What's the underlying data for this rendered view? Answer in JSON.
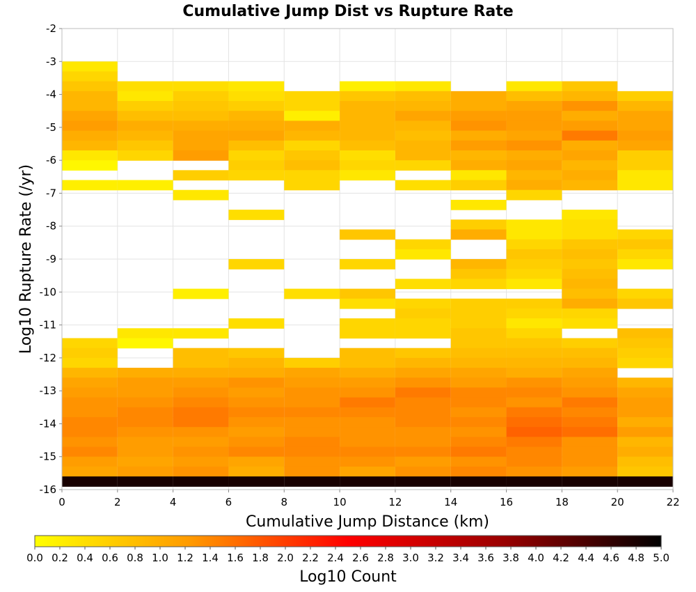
{
  "chart_data": {
    "type": "heatmap",
    "title": "Cumulative Jump Dist vs Rupture Rate",
    "xlabel": "Cumulative Jump Distance (km)",
    "ylabel": "Log10 Rupture Rate (/yr)",
    "colorbar_label": "Log10 Count",
    "xlim": [
      0,
      22
    ],
    "ylim": [
      -16,
      -2
    ],
    "x_ticks": [
      "0",
      "2",
      "4",
      "6",
      "8",
      "10",
      "12",
      "14",
      "16",
      "18",
      "20",
      "22"
    ],
    "y_ticks": [
      "-2",
      "-3",
      "-4",
      "-5",
      "-6",
      "-7",
      "-8",
      "-9",
      "-10",
      "-11",
      "-12",
      "-13",
      "-14",
      "-15",
      "-16"
    ],
    "color_range": [
      0.0,
      5.0
    ],
    "color_ticks": [
      "0.0",
      "0.2",
      "0.4",
      "0.6",
      "0.8",
      "1.0",
      "1.2",
      "1.4",
      "1.6",
      "1.8",
      "2.0",
      "2.2",
      "2.4",
      "2.6",
      "2.8",
      "3.0",
      "3.2",
      "3.4",
      "3.6",
      "3.8",
      "4.0",
      "4.2",
      "4.4",
      "4.6",
      "4.8",
      "5.0"
    ],
    "colormap": [
      "#ffff00",
      "#ff9900",
      "#ff0000",
      "#990000",
      "#000000"
    ],
    "grid": true,
    "x_bin_width": 2,
    "y_bin_height": 0.3,
    "cells": [
      [
        0,
        -3.3,
        0.3
      ],
      [
        0,
        -3.6,
        0.5
      ],
      [
        0,
        -3.9,
        0.7
      ],
      [
        0,
        -4.2,
        0.9
      ],
      [
        0,
        -4.5,
        0.9
      ],
      [
        0,
        -4.8,
        1.1
      ],
      [
        0,
        -5.1,
        1.2
      ],
      [
        0,
        -5.4,
        1.0
      ],
      [
        0,
        -5.7,
        0.9
      ],
      [
        0,
        -6.0,
        0.3
      ],
      [
        0,
        -6.3,
        0.1
      ],
      [
        0,
        -6.9,
        0.2
      ],
      [
        0,
        -11.7,
        0.5
      ],
      [
        0,
        -12.0,
        0.6
      ],
      [
        0,
        -12.3,
        0.5
      ],
      [
        0,
        -12.6,
        0.9
      ],
      [
        0,
        -12.9,
        1.1
      ],
      [
        0,
        -13.2,
        1.2
      ],
      [
        0,
        -13.5,
        1.3
      ],
      [
        0,
        -13.8,
        1.3
      ],
      [
        0,
        -14.1,
        1.4
      ],
      [
        0,
        -14.4,
        1.4
      ],
      [
        0,
        -14.7,
        1.3
      ],
      [
        0,
        -15.0,
        1.4
      ],
      [
        0,
        -15.3,
        1.2
      ],
      [
        0,
        -15.6,
        1.1
      ],
      [
        0,
        -15.9,
        4.8
      ],
      [
        2,
        -3.9,
        0.4
      ],
      [
        2,
        -4.2,
        0.3
      ],
      [
        2,
        -4.5,
        0.6
      ],
      [
        2,
        -4.8,
        0.8
      ],
      [
        2,
        -5.1,
        1.0
      ],
      [
        2,
        -5.4,
        0.9
      ],
      [
        2,
        -5.7,
        0.7
      ],
      [
        2,
        -6.0,
        0.5
      ],
      [
        2,
        -6.9,
        0.2
      ],
      [
        2,
        -11.4,
        0.3
      ],
      [
        2,
        -11.7,
        0.1
      ],
      [
        2,
        -12.6,
        1.0
      ],
      [
        2,
        -12.9,
        1.2
      ],
      [
        2,
        -13.2,
        1.2
      ],
      [
        2,
        -13.5,
        1.3
      ],
      [
        2,
        -13.8,
        1.4
      ],
      [
        2,
        -14.1,
        1.4
      ],
      [
        2,
        -14.4,
        1.3
      ],
      [
        2,
        -14.7,
        1.2
      ],
      [
        2,
        -15.0,
        1.2
      ],
      [
        2,
        -15.3,
        1.1
      ],
      [
        2,
        -15.6,
        1.2
      ],
      [
        2,
        -15.9,
        4.8
      ],
      [
        4,
        -3.9,
        0.4
      ],
      [
        4,
        -4.2,
        0.6
      ],
      [
        4,
        -4.5,
        0.7
      ],
      [
        4,
        -4.8,
        0.8
      ],
      [
        4,
        -5.1,
        1.0
      ],
      [
        4,
        -5.4,
        1.1
      ],
      [
        4,
        -5.7,
        1.1
      ],
      [
        4,
        -6.0,
        1.2
      ],
      [
        4,
        -6.6,
        0.6
      ],
      [
        4,
        -7.2,
        0.3
      ],
      [
        4,
        -10.2,
        0.2
      ],
      [
        4,
        -11.4,
        0.3
      ],
      [
        4,
        -12.0,
        0.8
      ],
      [
        4,
        -12.3,
        0.8
      ],
      [
        4,
        -12.6,
        1.0
      ],
      [
        4,
        -12.9,
        1.2
      ],
      [
        4,
        -13.2,
        1.3
      ],
      [
        4,
        -13.5,
        1.4
      ],
      [
        4,
        -13.8,
        1.5
      ],
      [
        4,
        -14.1,
        1.5
      ],
      [
        4,
        -14.4,
        1.3
      ],
      [
        4,
        -14.7,
        1.2
      ],
      [
        4,
        -15.0,
        1.3
      ],
      [
        4,
        -15.3,
        1.2
      ],
      [
        4,
        -15.6,
        1.3
      ],
      [
        4,
        -15.9,
        4.8
      ],
      [
        6,
        -3.9,
        0.3
      ],
      [
        6,
        -4.2,
        0.4
      ],
      [
        6,
        -4.5,
        0.6
      ],
      [
        6,
        -4.8,
        0.9
      ],
      [
        6,
        -5.1,
        1.0
      ],
      [
        6,
        -5.4,
        1.1
      ],
      [
        6,
        -5.7,
        0.8
      ],
      [
        6,
        -6.0,
        0.5
      ],
      [
        6,
        -6.3,
        0.6
      ],
      [
        6,
        -6.6,
        0.5
      ],
      [
        6,
        -7.8,
        0.4
      ],
      [
        6,
        -9.3,
        0.5
      ],
      [
        6,
        -11.1,
        0.4
      ],
      [
        6,
        -12.0,
        0.7
      ],
      [
        6,
        -12.3,
        0.9
      ],
      [
        6,
        -12.6,
        1.0
      ],
      [
        6,
        -12.9,
        1.3
      ],
      [
        6,
        -13.2,
        1.2
      ],
      [
        6,
        -13.5,
        1.3
      ],
      [
        6,
        -13.8,
        1.4
      ],
      [
        6,
        -14.1,
        1.3
      ],
      [
        6,
        -14.4,
        1.2
      ],
      [
        6,
        -14.7,
        1.3
      ],
      [
        6,
        -15.0,
        1.4
      ],
      [
        6,
        -15.3,
        1.1
      ],
      [
        6,
        -15.6,
        1.0
      ],
      [
        6,
        -15.9,
        4.8
      ],
      [
        8,
        -4.2,
        0.5
      ],
      [
        8,
        -4.5,
        0.5
      ],
      [
        8,
        -4.8,
        0.2
      ],
      [
        8,
        -5.1,
        1.0
      ],
      [
        8,
        -5.4,
        0.9
      ],
      [
        8,
        -5.7,
        0.5
      ],
      [
        8,
        -6.0,
        0.7
      ],
      [
        8,
        -6.3,
        0.8
      ],
      [
        8,
        -6.6,
        0.5
      ],
      [
        8,
        -6.9,
        0.5
      ],
      [
        8,
        -10.2,
        0.4
      ],
      [
        8,
        -12.3,
        0.6
      ],
      [
        8,
        -12.6,
        1.1
      ],
      [
        8,
        -12.9,
        1.2
      ],
      [
        8,
        -13.2,
        1.3
      ],
      [
        8,
        -13.5,
        1.3
      ],
      [
        8,
        -13.8,
        1.4
      ],
      [
        8,
        -14.1,
        1.3
      ],
      [
        8,
        -14.4,
        1.3
      ],
      [
        8,
        -14.7,
        1.4
      ],
      [
        8,
        -15.0,
        1.4
      ],
      [
        8,
        -15.3,
        1.3
      ],
      [
        8,
        -15.6,
        1.3
      ],
      [
        8,
        -15.9,
        4.8
      ],
      [
        10,
        -3.9,
        0.2
      ],
      [
        10,
        -4.2,
        0.7
      ],
      [
        10,
        -4.5,
        0.9
      ],
      [
        10,
        -4.8,
        0.9
      ],
      [
        10,
        -5.1,
        0.9
      ],
      [
        10,
        -5.4,
        0.9
      ],
      [
        10,
        -5.7,
        0.8
      ],
      [
        10,
        -6.0,
        0.4
      ],
      [
        10,
        -6.3,
        0.5
      ],
      [
        10,
        -6.6,
        0.3
      ],
      [
        10,
        -8.4,
        0.7
      ],
      [
        10,
        -9.3,
        0.5
      ],
      [
        10,
        -10.2,
        0.7
      ],
      [
        10,
        -10.5,
        0.4
      ],
      [
        10,
        -11.1,
        0.5
      ],
      [
        10,
        -11.4,
        0.5
      ],
      [
        10,
        -12.0,
        0.8
      ],
      [
        10,
        -12.3,
        0.8
      ],
      [
        10,
        -12.6,
        1.0
      ],
      [
        10,
        -12.9,
        1.2
      ],
      [
        10,
        -13.2,
        1.3
      ],
      [
        10,
        -13.5,
        1.5
      ],
      [
        10,
        -13.8,
        1.4
      ],
      [
        10,
        -14.1,
        1.3
      ],
      [
        10,
        -14.4,
        1.3
      ],
      [
        10,
        -14.7,
        1.3
      ],
      [
        10,
        -15.0,
        1.4
      ],
      [
        10,
        -15.3,
        1.3
      ],
      [
        10,
        -15.6,
        1.1
      ],
      [
        10,
        -15.9,
        4.8
      ],
      [
        12,
        -3.9,
        0.3
      ],
      [
        12,
        -4.2,
        0.8
      ],
      [
        12,
        -4.5,
        0.9
      ],
      [
        12,
        -4.8,
        1.1
      ],
      [
        12,
        -5.1,
        0.9
      ],
      [
        12,
        -5.4,
        0.8
      ],
      [
        12,
        -5.7,
        0.9
      ],
      [
        12,
        -6.0,
        0.9
      ],
      [
        12,
        -6.3,
        0.5
      ],
      [
        12,
        -6.9,
        0.4
      ],
      [
        12,
        -8.7,
        0.5
      ],
      [
        12,
        -9.0,
        0.3
      ],
      [
        12,
        -9.9,
        0.4
      ],
      [
        12,
        -10.5,
        0.5
      ],
      [
        12,
        -10.8,
        0.6
      ],
      [
        12,
        -11.1,
        0.5
      ],
      [
        12,
        -11.4,
        0.5
      ],
      [
        12,
        -12.0,
        0.7
      ],
      [
        12,
        -12.3,
        0.9
      ],
      [
        12,
        -12.6,
        1.1
      ],
      [
        12,
        -12.9,
        1.3
      ],
      [
        12,
        -13.2,
        1.5
      ],
      [
        12,
        -13.5,
        1.4
      ],
      [
        12,
        -13.8,
        1.4
      ],
      [
        12,
        -14.1,
        1.4
      ],
      [
        12,
        -14.4,
        1.3
      ],
      [
        12,
        -14.7,
        1.3
      ],
      [
        12,
        -15.0,
        1.4
      ],
      [
        12,
        -15.3,
        1.2
      ],
      [
        12,
        -15.6,
        1.3
      ],
      [
        12,
        -15.9,
        4.8
      ],
      [
        14,
        -4.2,
        1.0
      ],
      [
        14,
        -4.5,
        1.0
      ],
      [
        14,
        -4.8,
        1.2
      ],
      [
        14,
        -5.1,
        1.3
      ],
      [
        14,
        -5.4,
        1.0
      ],
      [
        14,
        -5.7,
        1.2
      ],
      [
        14,
        -6.0,
        0.9
      ],
      [
        14,
        -6.3,
        1.0
      ],
      [
        14,
        -6.6,
        0.3
      ],
      [
        14,
        -6.9,
        0.6
      ],
      [
        14,
        -7.5,
        0.3
      ],
      [
        14,
        -8.1,
        0.6
      ],
      [
        14,
        -8.4,
        1.0
      ],
      [
        14,
        -9.3,
        0.9
      ],
      [
        14,
        -9.6,
        0.7
      ],
      [
        14,
        -9.9,
        0.5
      ],
      [
        14,
        -10.5,
        0.6
      ],
      [
        14,
        -10.8,
        0.6
      ],
      [
        14,
        -11.1,
        0.6
      ],
      [
        14,
        -11.4,
        0.7
      ],
      [
        14,
        -11.7,
        0.7
      ],
      [
        14,
        -12.0,
        0.8
      ],
      [
        14,
        -12.3,
        0.9
      ],
      [
        14,
        -12.6,
        1.1
      ],
      [
        14,
        -12.9,
        1.2
      ],
      [
        14,
        -13.2,
        1.4
      ],
      [
        14,
        -13.5,
        1.4
      ],
      [
        14,
        -13.8,
        1.3
      ],
      [
        14,
        -14.1,
        1.4
      ],
      [
        14,
        -14.4,
        1.3
      ],
      [
        14,
        -14.7,
        1.4
      ],
      [
        14,
        -15.0,
        1.5
      ],
      [
        14,
        -15.3,
        1.3
      ],
      [
        14,
        -15.6,
        1.4
      ],
      [
        14,
        -15.9,
        4.8
      ],
      [
        16,
        -3.9,
        0.3
      ],
      [
        16,
        -4.2,
        0.8
      ],
      [
        16,
        -4.5,
        1.1
      ],
      [
        16,
        -4.8,
        1.2
      ],
      [
        16,
        -5.1,
        1.2
      ],
      [
        16,
        -5.4,
        1.1
      ],
      [
        16,
        -5.7,
        1.3
      ],
      [
        16,
        -6.0,
        1.0
      ],
      [
        16,
        -6.3,
        1.1
      ],
      [
        16,
        -6.6,
        0.9
      ],
      [
        16,
        -6.9,
        1.0
      ],
      [
        16,
        -7.2,
        0.5
      ],
      [
        16,
        -8.1,
        0.3
      ],
      [
        16,
        -8.4,
        0.3
      ],
      [
        16,
        -8.7,
        0.5
      ],
      [
        16,
        -9.0,
        0.7
      ],
      [
        16,
        -9.3,
        0.6
      ],
      [
        16,
        -9.6,
        0.5
      ],
      [
        16,
        -9.9,
        0.3
      ],
      [
        16,
        -10.5,
        0.6
      ],
      [
        16,
        -10.8,
        0.5
      ],
      [
        16,
        -11.1,
        0.3
      ],
      [
        16,
        -11.4,
        0.5
      ],
      [
        16,
        -11.7,
        0.7
      ],
      [
        16,
        -12.0,
        0.8
      ],
      [
        16,
        -12.3,
        0.9
      ],
      [
        16,
        -12.6,
        1.0
      ],
      [
        16,
        -12.9,
        1.3
      ],
      [
        16,
        -13.2,
        1.4
      ],
      [
        16,
        -13.5,
        1.3
      ],
      [
        16,
        -13.8,
        1.5
      ],
      [
        16,
        -14.1,
        1.6
      ],
      [
        16,
        -14.4,
        1.7
      ],
      [
        16,
        -14.7,
        1.5
      ],
      [
        16,
        -15.0,
        1.4
      ],
      [
        16,
        -15.3,
        1.4
      ],
      [
        16,
        -15.6,
        1.3
      ],
      [
        16,
        -15.9,
        4.8
      ],
      [
        18,
        -3.9,
        0.7
      ],
      [
        18,
        -4.2,
        0.9
      ],
      [
        18,
        -4.5,
        1.3
      ],
      [
        18,
        -4.8,
        1.0
      ],
      [
        18,
        -5.1,
        1.2
      ],
      [
        18,
        -5.4,
        1.5
      ],
      [
        18,
        -5.7,
        1.0
      ],
      [
        18,
        -6.0,
        1.1
      ],
      [
        18,
        -6.3,
        0.9
      ],
      [
        18,
        -6.6,
        1.0
      ],
      [
        18,
        -6.9,
        0.9
      ],
      [
        18,
        -7.8,
        0.3
      ],
      [
        18,
        -8.1,
        0.4
      ],
      [
        18,
        -8.4,
        0.4
      ],
      [
        18,
        -8.7,
        0.7
      ],
      [
        18,
        -9.0,
        0.8
      ],
      [
        18,
        -9.3,
        0.7
      ],
      [
        18,
        -9.6,
        0.8
      ],
      [
        18,
        -9.9,
        0.9
      ],
      [
        18,
        -10.2,
        0.8
      ],
      [
        18,
        -10.5,
        1.0
      ],
      [
        18,
        -10.8,
        0.5
      ],
      [
        18,
        -11.1,
        0.4
      ],
      [
        18,
        -11.7,
        0.6
      ],
      [
        18,
        -12.0,
        0.8
      ],
      [
        18,
        -12.3,
        0.9
      ],
      [
        18,
        -12.6,
        1.1
      ],
      [
        18,
        -12.9,
        1.2
      ],
      [
        18,
        -13.2,
        1.3
      ],
      [
        18,
        -13.5,
        1.5
      ],
      [
        18,
        -13.8,
        1.4
      ],
      [
        18,
        -14.1,
        1.5
      ],
      [
        18,
        -14.4,
        1.6
      ],
      [
        18,
        -14.7,
        1.3
      ],
      [
        18,
        -15.0,
        1.3
      ],
      [
        18,
        -15.3,
        1.3
      ],
      [
        18,
        -15.6,
        1.2
      ],
      [
        18,
        -15.9,
        4.8
      ],
      [
        20,
        -4.2,
        0.6
      ],
      [
        20,
        -4.5,
        0.9
      ],
      [
        20,
        -4.8,
        1.1
      ],
      [
        20,
        -5.1,
        1.1
      ],
      [
        20,
        -5.4,
        1.2
      ],
      [
        20,
        -5.7,
        1.1
      ],
      [
        20,
        -6.0,
        0.6
      ],
      [
        20,
        -6.3,
        0.6
      ],
      [
        20,
        -6.6,
        0.3
      ],
      [
        20,
        -6.9,
        0.3
      ],
      [
        20,
        -8.4,
        0.5
      ],
      [
        20,
        -8.7,
        0.7
      ],
      [
        20,
        -9.0,
        0.5
      ],
      [
        20,
        -9.3,
        0.3
      ],
      [
        20,
        -10.2,
        0.5
      ],
      [
        20,
        -10.5,
        0.7
      ],
      [
        20,
        -11.4,
        0.8
      ],
      [
        20,
        -11.7,
        0.7
      ],
      [
        20,
        -12.0,
        0.6
      ],
      [
        20,
        -12.3,
        0.5
      ],
      [
        20,
        -12.9,
        0.9
      ],
      [
        20,
        -13.2,
        1.1
      ],
      [
        20,
        -13.5,
        1.2
      ],
      [
        20,
        -13.8,
        1.2
      ],
      [
        20,
        -14.1,
        1.0
      ],
      [
        20,
        -14.4,
        1.2
      ],
      [
        20,
        -14.7,
        0.9
      ],
      [
        20,
        -15.0,
        1.0
      ],
      [
        20,
        -15.3,
        0.8
      ],
      [
        20,
        -15.6,
        0.7
      ],
      [
        20,
        -15.9,
        4.8
      ]
    ]
  }
}
